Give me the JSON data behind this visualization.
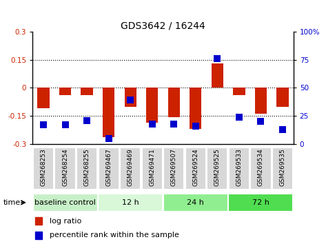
{
  "title": "GDS3642 / 16244",
  "samples": [
    "GSM268253",
    "GSM268254",
    "GSM268255",
    "GSM269467",
    "GSM269469",
    "GSM269471",
    "GSM269507",
    "GSM269524",
    "GSM269525",
    "GSM269533",
    "GSM269534",
    "GSM269535"
  ],
  "log_ratio": [
    -0.11,
    -0.04,
    -0.04,
    -0.265,
    -0.1,
    -0.185,
    -0.155,
    -0.22,
    0.13,
    -0.04,
    -0.14,
    -0.1
  ],
  "percentile_rank": [
    17,
    17,
    21,
    5,
    39,
    18,
    18,
    16,
    76,
    24,
    20,
    13
  ],
  "groups": [
    {
      "label": "baseline control",
      "start": 0,
      "end": 3,
      "color": "#c8f0c8"
    },
    {
      "label": "12 h",
      "start": 3,
      "end": 6,
      "color": "#d8f8d8"
    },
    {
      "label": "24 h",
      "start": 6,
      "end": 9,
      "color": "#90ee90"
    },
    {
      "label": "72 h",
      "start": 9,
      "end": 12,
      "color": "#50dd50"
    }
  ],
  "ylim_left": [
    -0.3,
    0.3
  ],
  "ylim_right": [
    0,
    100
  ],
  "yticks_left": [
    -0.3,
    -0.15,
    0,
    0.15,
    0.3
  ],
  "yticks_right": [
    0,
    25,
    50,
    75,
    100
  ],
  "bar_color": "#cc2200",
  "dot_color": "#0000cc",
  "bar_width": 0.55,
  "dot_size": 45,
  "hline_positions": [
    -0.15,
    0,
    0.15
  ],
  "time_label": "time",
  "legend_log_ratio": "log ratio",
  "legend_percentile": "percentile rank within the sample",
  "sample_box_color": "#d8d8d8",
  "title_fontsize": 10,
  "tick_fontsize": 7.5,
  "sample_fontsize": 6.5,
  "group_fontsize": 8
}
